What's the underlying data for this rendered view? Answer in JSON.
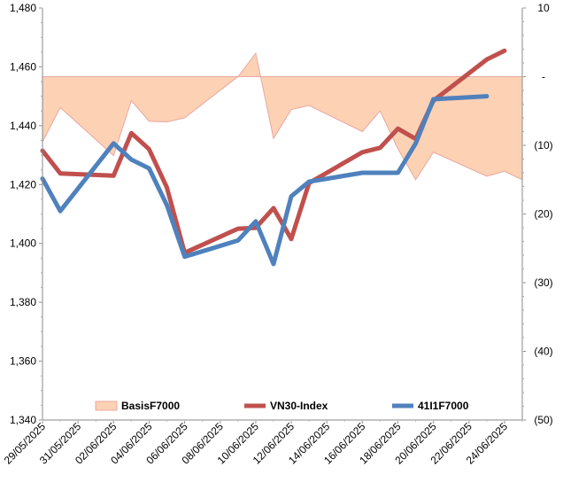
{
  "chart_data": {
    "type": "line",
    "x": [
      "29/05/2025",
      "30/05/2025",
      "02/06/2025",
      "03/06/2025",
      "04/06/2025",
      "05/06/2025",
      "06/06/2025",
      "09/06/2025",
      "10/06/2025",
      "11/06/2025",
      "12/06/2025",
      "13/06/2025",
      "16/06/2025",
      "17/06/2025",
      "18/06/2025",
      "19/06/2025",
      "20/06/2025",
      "23/06/2025",
      "24/06/2025",
      "25/06/2025"
    ],
    "x_tick_labels": [
      "29/05/2025",
      "31/05/2025",
      "02/06/2025",
      "04/06/2025",
      "06/06/2025",
      "08/06/2025",
      "10/06/2025",
      "12/06/2025",
      "14/06/2025",
      "16/06/2025",
      "18/06/2025",
      "20/06/2025",
      "22/06/2025",
      "24/06/2025"
    ],
    "x_range": [
      "29/05/2025",
      "25/06/2025"
    ],
    "y_left": {
      "min": 1340,
      "max": 1480,
      "ticks": [
        "1,340",
        "1,360",
        "1,380",
        "1,400",
        "1,420",
        "1,440",
        "1,460",
        "1,480"
      ]
    },
    "y_right": {
      "min": -50,
      "max": 10,
      "ticks": [
        "10",
        "-",
        "(10)",
        "(20)",
        "(30)",
        "(40)",
        "(50)"
      ]
    },
    "series": [
      {
        "name": "BasisF7000",
        "type": "area",
        "axis": "right",
        "color_fill": "#fcd1b4",
        "color_line": "#e8a8a0",
        "values": [
          -9.5,
          -4.5,
          -11.5,
          -3.5,
          -6.5,
          -6.6,
          -6.0,
          0,
          3.4,
          -9.0,
          -4.8,
          -4.2,
          -8.0,
          -5.0,
          -10.5,
          -15.0,
          -11.0,
          -14.5,
          -13.8,
          -15.0
        ]
      },
      {
        "name": "VN30-Index",
        "type": "line",
        "axis": "left",
        "color": "#c0504d",
        "values": [
          1431.5,
          1423.8,
          1423.0,
          1437.5,
          1432.0,
          1419.0,
          1396.8,
          1405.0,
          1405.3,
          1412.0,
          1401.5,
          1420.5,
          1431.0,
          1432.5,
          1439.0,
          1435.5,
          1448.5,
          1462.5,
          1465.5,
          null
        ]
      },
      {
        "name": "41I1F7000",
        "type": "line",
        "axis": "left",
        "color": "#4f81bd",
        "values": [
          1422.0,
          1411.0,
          1434.0,
          1428.5,
          1425.5,
          1413.0,
          1395.5,
          1401.0,
          1407.5,
          1393.0,
          1416.0,
          1421.0,
          1424.0,
          1424.0,
          1424.0,
          1434.0,
          1449.0,
          1450.0,
          null,
          null
        ]
      }
    ],
    "legend": {
      "placement": "bottom-inside"
    },
    "grid": false
  }
}
